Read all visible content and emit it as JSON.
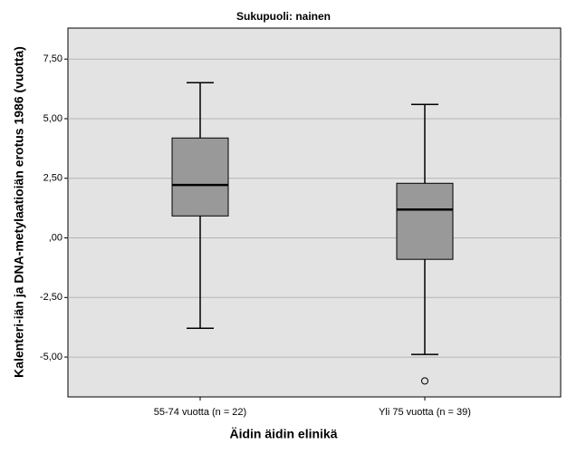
{
  "chart_data": {
    "type": "box",
    "title": "Sukupuoli: nainen",
    "x_label": "Äidin äidin elinikä",
    "y_label": "Kalenteri-iän ja DNA-metylaatioiän erotus 1986 (vuotta)",
    "categories": [
      "55-74 vuotta (n = 22)",
      "Yli 75 vuotta (n = 39)"
    ],
    "boxes": [
      {
        "min": -3.79,
        "q1": 0.92,
        "median": 2.22,
        "q3": 4.19,
        "max": 6.51,
        "outliers": []
      },
      {
        "min": -4.89,
        "q1": -0.9,
        "median": 1.19,
        "q3": 2.29,
        "max": 5.6,
        "outliers": [
          -6.0
        ]
      }
    ],
    "color": "#999999",
    "ylim": [
      -6.67,
      8.8
    ],
    "yticks": [
      {
        "value": 7.5,
        "label": "7,50"
      },
      {
        "value": 5,
        "label": "5,00"
      },
      {
        "value": 2.5,
        "label": "2,50"
      },
      {
        "value": 0,
        "label": ",00"
      },
      {
        "value": -2.5,
        "label": "-2,50"
      },
      {
        "value": -5,
        "label": "-5,00"
      }
    ],
    "grid": true
  }
}
